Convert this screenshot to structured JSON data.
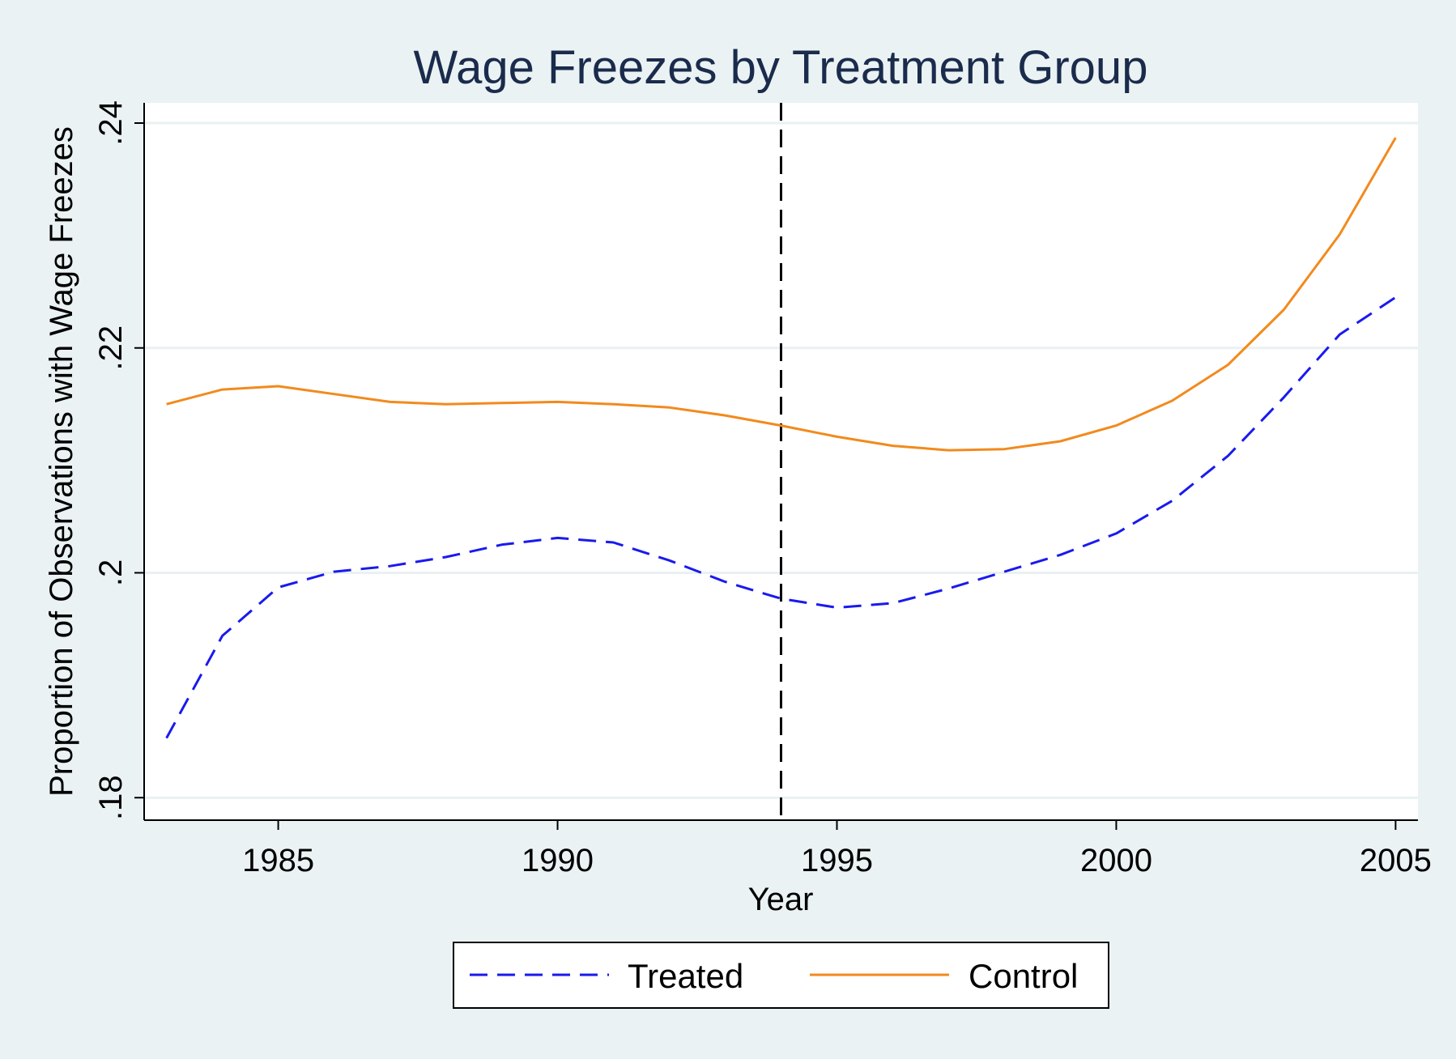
{
  "chart_data": {
    "type": "line",
    "title": "Wage Freezes by Treatment Group",
    "xlabel": "Year",
    "ylabel": "Proportion of Observations with Wage Freezes",
    "xlim": [
      1982.6,
      2005.4
    ],
    "ylim": [
      0.178,
      0.2418
    ],
    "x_ticks": [
      1985,
      1990,
      1995,
      2000,
      2005
    ],
    "x_tick_labels": [
      "1985",
      "1990",
      "1995",
      "2000",
      "2005"
    ],
    "y_ticks": [
      0.18,
      0.2,
      0.22,
      0.24
    ],
    "y_tick_labels": [
      ".18",
      ".2",
      ".22",
      ".24"
    ],
    "grid": true,
    "vline": {
      "x": 1994,
      "style": "dashed",
      "color": "#000000"
    },
    "x": [
      1983,
      1984,
      1985,
      1986,
      1987,
      1988,
      1989,
      1990,
      1991,
      1992,
      1993,
      1994,
      1995,
      1996,
      1997,
      1998,
      1999,
      2000,
      2001,
      2002,
      2003,
      2004,
      2005
    ],
    "series": [
      {
        "name": "Treated",
        "color": "#1a1aee",
        "style": "dashed",
        "values": [
          0.1853,
          0.1944,
          0.1987,
          0.2001,
          0.2006,
          0.2014,
          0.2025,
          0.2031,
          0.2027,
          0.2011,
          0.1992,
          0.1977,
          0.1969,
          0.1973,
          0.1986,
          0.2001,
          0.2016,
          0.2035,
          0.2064,
          0.2104,
          0.2156,
          0.2212,
          0.2245
        ]
      },
      {
        "name": "Control",
        "color": "#f28a1d",
        "style": "solid",
        "values": [
          0.215,
          0.2163,
          0.2166,
          0.2159,
          0.2152,
          0.215,
          0.2151,
          0.2152,
          0.215,
          0.2147,
          0.214,
          0.2131,
          0.2121,
          0.2113,
          0.2109,
          0.211,
          0.2117,
          0.2131,
          0.2153,
          0.2185,
          0.2234,
          0.2301,
          0.2387
        ]
      }
    ],
    "legend": {
      "position": "bottom",
      "entries": [
        "Treated",
        "Control"
      ]
    }
  }
}
